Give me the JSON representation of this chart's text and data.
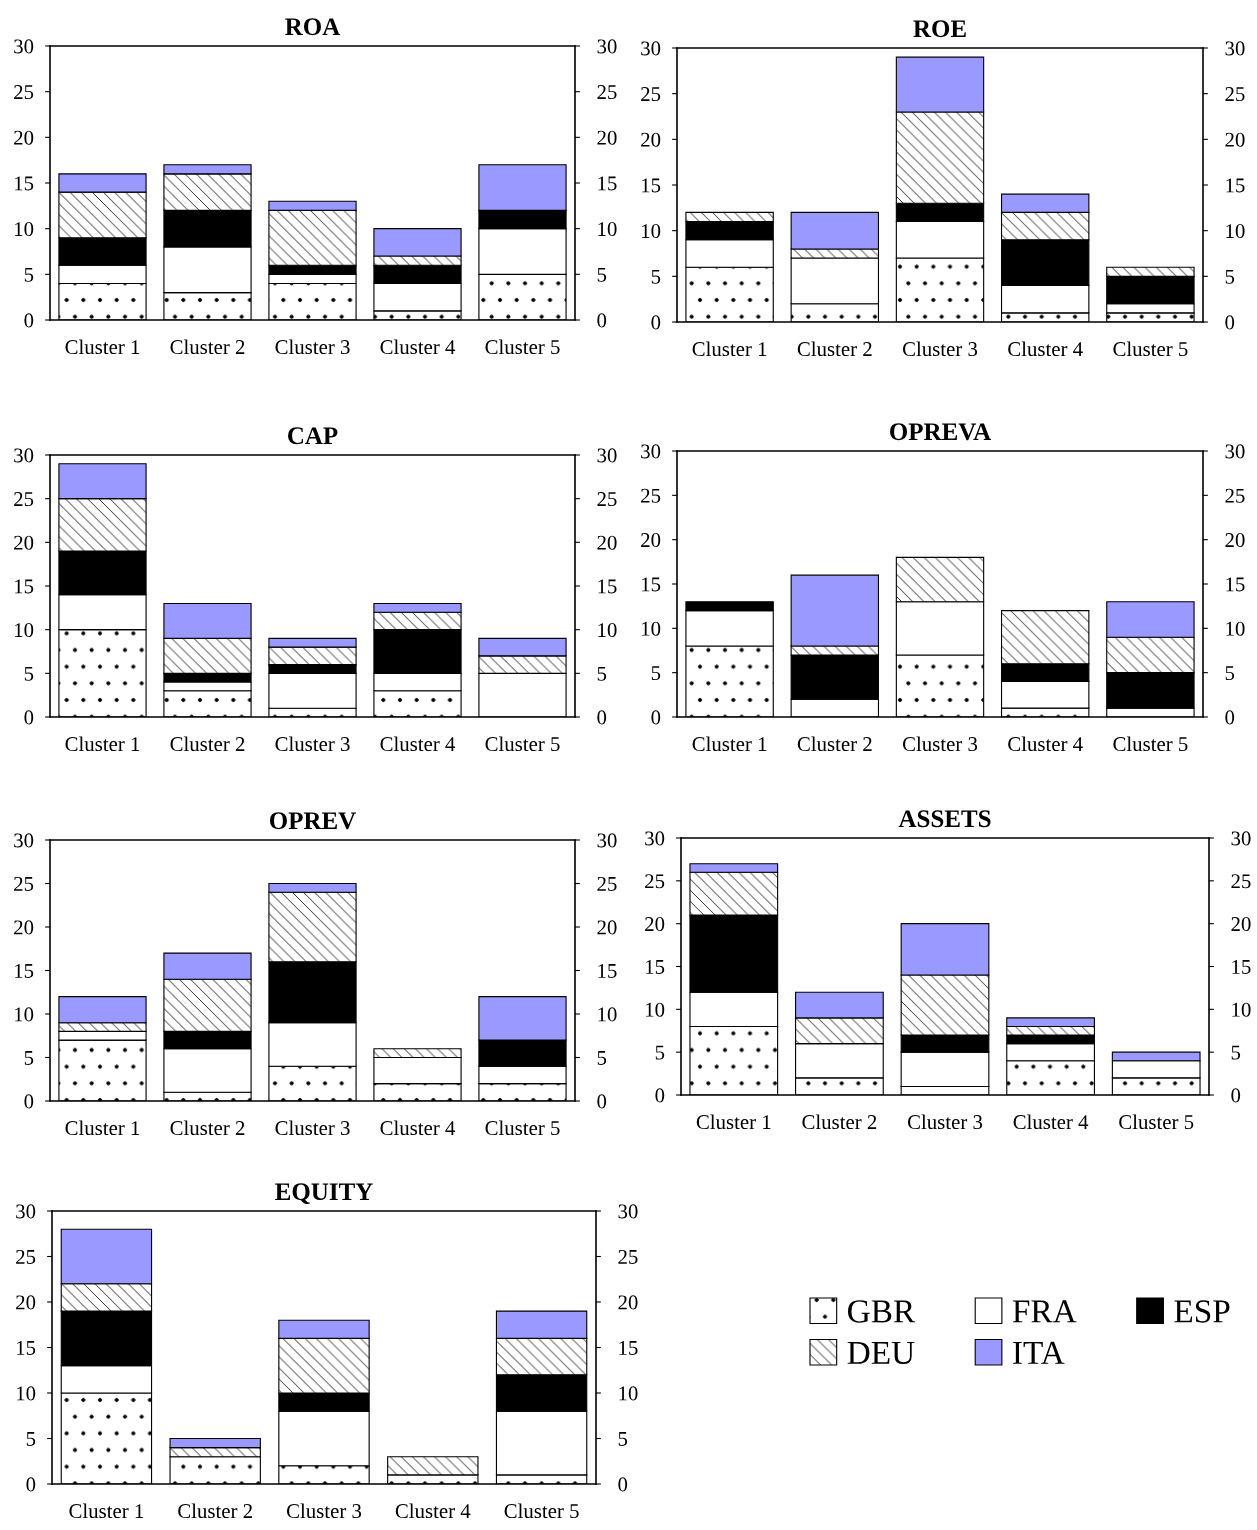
{
  "chart_data": [
    {
      "type": "bar",
      "title": "ROA",
      "stacked": true,
      "categories": [
        "Cluster 1",
        "Cluster 2",
        "Cluster 3",
        "Cluster 4",
        "Cluster 5"
      ],
      "ylim": [
        0,
        30
      ],
      "yticks": [
        0,
        5,
        10,
        15,
        20,
        25,
        30
      ],
      "y2lim": [
        0,
        30
      ],
      "y2ticks": [
        0,
        5,
        10,
        15,
        20,
        25,
        30
      ],
      "grid": false,
      "legend": "bottom right",
      "series": [
        {
          "name": "GBR",
          "color": "#ffffff",
          "values": [
            4,
            3,
            4,
            1,
            5
          ]
        },
        {
          "name": "FRA",
          "color": "#ffffff",
          "values": [
            2,
            5,
            1,
            3,
            5
          ]
        },
        {
          "name": "ESP",
          "color": "#000000",
          "values": [
            3,
            4,
            1,
            2,
            2
          ]
        },
        {
          "name": "DEU",
          "color": "#ffffff",
          "values": [
            5,
            4,
            6,
            1,
            0
          ]
        },
        {
          "name": "ITA",
          "color": "#9999ff",
          "values": [
            2,
            1,
            1,
            3,
            5
          ]
        }
      ]
    },
    {
      "type": "bar",
      "title": "ROE",
      "stacked": true,
      "categories": [
        "Cluster 1",
        "Cluster 2",
        "Cluster 3",
        "Cluster 4",
        "Cluster 5"
      ],
      "ylim": [
        0,
        30
      ],
      "yticks": [
        0,
        5,
        10,
        15,
        20,
        25,
        30
      ],
      "y2lim": [
        0,
        30
      ],
      "y2ticks": [
        0,
        5,
        10,
        15,
        20,
        25,
        30
      ],
      "grid": false,
      "series": [
        {
          "color": "#ffffff",
          "values": [
            6,
            2,
            7,
            1,
            1
          ]
        },
        {
          "color": "#ffffff",
          "values": [
            3,
            5,
            4,
            3,
            1
          ]
        },
        {
          "color": "#000000",
          "values": [
            2,
            0,
            2,
            5,
            3
          ]
        },
        {
          "color": "#ffffff",
          "values": [
            1,
            1,
            10,
            3,
            1
          ]
        },
        {
          "color": "#9999ff",
          "values": [
            0,
            4,
            6,
            2,
            0
          ]
        }
      ]
    },
    {
      "type": "bar",
      "title": "CAP",
      "stacked": true,
      "categories": [
        "Cluster 1",
        "Cluster 2",
        "Cluster 3",
        "Cluster 4",
        "Cluster 5"
      ],
      "ylim": [
        0,
        30
      ],
      "yticks": [
        0,
        5,
        10,
        15,
        20,
        25,
        30
      ],
      "y2lim": [
        0,
        30
      ],
      "y2ticks": [
        0,
        5,
        10,
        15,
        20,
        25,
        30
      ],
      "grid": false,
      "series": [
        {
          "color": "#ffffff",
          "values": [
            10,
            3,
            1,
            3,
            0
          ]
        },
        {
          "color": "#ffffff",
          "values": [
            4,
            1,
            4,
            2,
            5
          ]
        },
        {
          "color": "#000000",
          "values": [
            5,
            1,
            1,
            5,
            0
          ]
        },
        {
          "color": "#ffffff",
          "values": [
            6,
            4,
            2,
            2,
            2
          ]
        },
        {
          "color": "#9999ff",
          "values": [
            4,
            4,
            1,
            1,
            2
          ]
        }
      ]
    },
    {
      "type": "bar",
      "title": "OPREVA",
      "stacked": true,
      "categories": [
        "Cluster 1",
        "Cluster 2",
        "Cluster 3",
        "Cluster 4",
        "Cluster 5"
      ],
      "ylim": [
        0,
        30
      ],
      "yticks": [
        0,
        5,
        10,
        15,
        20,
        25,
        30
      ],
      "y2lim": [
        0,
        30
      ],
      "y2ticks": [
        0,
        5,
        10,
        15,
        20,
        25,
        30
      ],
      "grid": false,
      "series": [
        {
          "color": "#ffffff",
          "values": [
            8,
            0,
            7,
            1,
            0
          ]
        },
        {
          "color": "#ffffff",
          "values": [
            4,
            2,
            6,
            3,
            1
          ]
        },
        {
          "color": "#000000",
          "values": [
            1,
            5,
            0,
            2,
            4
          ]
        },
        {
          "color": "#ffffff",
          "values": [
            0,
            1,
            5,
            6,
            4
          ]
        },
        {
          "color": "#9999ff",
          "values": [
            0,
            8,
            0,
            0,
            4
          ]
        }
      ]
    },
    {
      "type": "bar",
      "title": "OPREV",
      "stacked": true,
      "categories": [
        "Cluster 1",
        "Cluster 2",
        "Cluster 3",
        "Cluster 4",
        "Cluster 5"
      ],
      "ylim": [
        0,
        30
      ],
      "yticks": [
        0,
        5,
        10,
        15,
        20,
        25,
        30
      ],
      "y2lim": [
        0,
        30
      ],
      "y2ticks": [
        0,
        5,
        10,
        15,
        20,
        25,
        30
      ],
      "grid": false,
      "series": [
        {
          "color": "#ffffff",
          "values": [
            7,
            1,
            4,
            2,
            2
          ]
        },
        {
          "color": "#ffffff",
          "values": [
            1,
            5,
            5,
            3,
            2
          ]
        },
        {
          "color": "#000000",
          "values": [
            0,
            2,
            7,
            0,
            3
          ]
        },
        {
          "color": "#ffffff",
          "values": [
            1,
            6,
            8,
            1,
            0
          ]
        },
        {
          "color": "#9999ff",
          "values": [
            3,
            3,
            1,
            0,
            5
          ]
        }
      ]
    },
    {
      "type": "bar",
      "title": "ASSETS",
      "stacked": true,
      "categories": [
        "Cluster 1",
        "Cluster 2",
        "Cluster 3",
        "Cluster 4",
        "Cluster 5"
      ],
      "ylim": [
        0,
        30
      ],
      "yticks": [
        0,
        5,
        10,
        15,
        20,
        25,
        30
      ],
      "y2lim": [
        0,
        30
      ],
      "y2ticks": [
        0,
        5,
        10,
        15,
        20,
        25,
        30
      ],
      "grid": false,
      "series": [
        {
          "color": "#ffffff",
          "values": [
            8,
            2,
            1,
            4,
            2
          ]
        },
        {
          "color": "#ffffff",
          "values": [
            4,
            4,
            4,
            2,
            2
          ]
        },
        {
          "color": "#000000",
          "values": [
            9,
            0,
            2,
            1,
            0
          ]
        },
        {
          "color": "#ffffff",
          "values": [
            5,
            3,
            7,
            1,
            0
          ]
        },
        {
          "color": "#9999ff",
          "values": [
            1,
            3,
            6,
            1,
            1
          ]
        }
      ]
    },
    {
      "type": "bar",
      "title": "EQUITY",
      "stacked": true,
      "categories": [
        "Cluster 1",
        "Cluster 2",
        "Cluster 3",
        "Cluster 4",
        "Cluster 5"
      ],
      "ylim": [
        0,
        30
      ],
      "yticks": [
        0,
        5,
        10,
        15,
        20,
        25,
        30
      ],
      "y2lim": [
        0,
        30
      ],
      "y2ticks": [
        0,
        5,
        10,
        15,
        20,
        25,
        30
      ],
      "grid": false,
      "series": [
        {
          "color": "#ffffff",
          "values": [
            10,
            3,
            2,
            1,
            1
          ]
        },
        {
          "color": "#ffffff",
          "values": [
            3,
            0,
            6,
            0,
            7
          ]
        },
        {
          "color": "#000000",
          "values": [
            6,
            0,
            2,
            0,
            4
          ]
        },
        {
          "color": "#ffffff",
          "values": [
            3,
            1,
            6,
            2,
            4
          ]
        },
        {
          "color": "#9999ff",
          "values": [
            6,
            1,
            2,
            0,
            3
          ]
        }
      ]
    }
  ]
}
